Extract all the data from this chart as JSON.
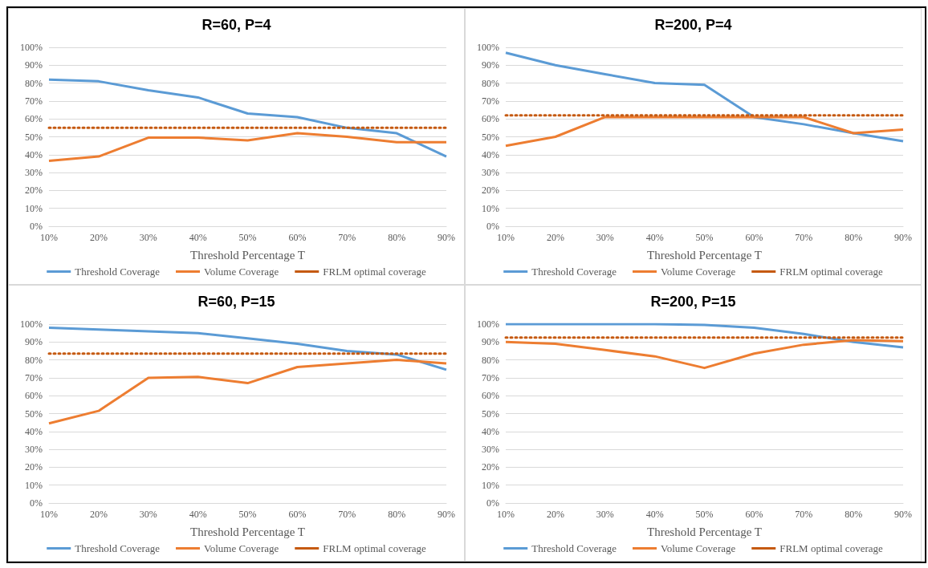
{
  "chart_data": [
    {
      "type": "line",
      "title": "R=60, P=4",
      "xlabel": "Threshold Percentage T",
      "categories": [
        "10%",
        "20%",
        "30%",
        "40%",
        "50%",
        "60%",
        "70%",
        "80%",
        "90%"
      ],
      "ylim": [
        0,
        100
      ],
      "yticks": [
        {
          "value": 0,
          "label": "0%"
        },
        {
          "value": 10,
          "label": "10%"
        },
        {
          "value": 20,
          "label": "20%"
        },
        {
          "value": 30,
          "label": "30%"
        },
        {
          "value": 40,
          "label": "40%"
        },
        {
          "value": 50,
          "label": "50%"
        },
        {
          "value": 60,
          "label": "60%"
        },
        {
          "value": 70,
          "label": "70%"
        },
        {
          "value": 80,
          "label": "80%"
        },
        {
          "value": 90,
          "label": "90%"
        },
        {
          "value": 100,
          "label": "100%"
        }
      ],
      "grid": "y",
      "legend": "bottom",
      "marker": "none",
      "series": [
        {
          "name": "Threshold Coverage",
          "color": "#5b9bd5",
          "line_style": "solid",
          "values": [
            82,
            81,
            76,
            72,
            63,
            61,
            55,
            52,
            39
          ]
        },
        {
          "name": "Volume Coverage",
          "color": "#ed7d31",
          "line_style": "solid",
          "values": [
            36.5,
            39,
            49.5,
            49.5,
            48,
            52,
            50,
            47,
            47
          ]
        },
        {
          "name": "FRLM optimal coverage",
          "color": "#c55a11",
          "line_style": "dotted",
          "values": [
            55,
            55,
            55,
            55,
            55,
            55,
            55,
            55,
            55
          ]
        }
      ]
    },
    {
      "type": "line",
      "title": "R=200, P=4",
      "xlabel": "Threshold Percentage T",
      "categories": [
        "10%",
        "20%",
        "30%",
        "40%",
        "50%",
        "60%",
        "70%",
        "80%",
        "90%"
      ],
      "ylim": [
        0,
        100
      ],
      "yticks": [
        {
          "value": 0,
          "label": "0%"
        },
        {
          "value": 10,
          "label": "10%"
        },
        {
          "value": 20,
          "label": "20%"
        },
        {
          "value": 30,
          "label": "30%"
        },
        {
          "value": 40,
          "label": "40%"
        },
        {
          "value": 50,
          "label": "50%"
        },
        {
          "value": 60,
          "label": "60%"
        },
        {
          "value": 70,
          "label": "70%"
        },
        {
          "value": 80,
          "label": "80%"
        },
        {
          "value": 90,
          "label": "90%"
        },
        {
          "value": 100,
          "label": "100%"
        }
      ],
      "grid": "y",
      "legend": "bottom",
      "marker": "none",
      "series": [
        {
          "name": "Threshold Coverage",
          "color": "#5b9bd5",
          "line_style": "solid",
          "values": [
            97,
            90,
            85,
            80,
            79,
            61,
            57,
            52,
            47.5
          ]
        },
        {
          "name": "Volume Coverage",
          "color": "#ed7d31",
          "line_style": "solid",
          "values": [
            45,
            50,
            61,
            61,
            61,
            61,
            61,
            52,
            54
          ]
        },
        {
          "name": "FRLM optimal coverage",
          "color": "#c55a11",
          "line_style": "dotted",
          "values": [
            62,
            62,
            62,
            62,
            62,
            62,
            62,
            62,
            62
          ]
        }
      ]
    },
    {
      "type": "line",
      "title": "R=60, P=15",
      "xlabel": "Threshold Percentage T",
      "categories": [
        "10%",
        "20%",
        "30%",
        "40%",
        "50%",
        "60%",
        "70%",
        "80%",
        "90%"
      ],
      "ylim": [
        0,
        100
      ],
      "yticks": [
        {
          "value": 0,
          "label": "0%"
        },
        {
          "value": 10,
          "label": "10%"
        },
        {
          "value": 20,
          "label": "20%"
        },
        {
          "value": 30,
          "label": "30%"
        },
        {
          "value": 40,
          "label": "40%"
        },
        {
          "value": 50,
          "label": "50%"
        },
        {
          "value": 60,
          "label": "60%"
        },
        {
          "value": 70,
          "label": "70%"
        },
        {
          "value": 80,
          "label": "80%"
        },
        {
          "value": 90,
          "label": "90%"
        },
        {
          "value": 100,
          "label": "100%"
        }
      ],
      "grid": "y",
      "legend": "bottom",
      "marker": "none",
      "series": [
        {
          "name": "Threshold Coverage",
          "color": "#5b9bd5",
          "line_style": "solid",
          "values": [
            98,
            97,
            96,
            95,
            92,
            89,
            85,
            83,
            74.5
          ]
        },
        {
          "name": "Volume Coverage",
          "color": "#ed7d31",
          "line_style": "solid",
          "values": [
            44.5,
            51.5,
            70,
            70.5,
            67,
            76,
            78,
            80,
            78
          ]
        },
        {
          "name": "FRLM optimal coverage",
          "color": "#c55a11",
          "line_style": "dotted",
          "values": [
            83.5,
            83.5,
            83.5,
            83.5,
            83.5,
            83.5,
            83.5,
            83.5,
            83.5
          ]
        }
      ]
    },
    {
      "type": "line",
      "title": "R=200, P=15",
      "xlabel": "Threshold Percentage T",
      "categories": [
        "10%",
        "20%",
        "30%",
        "40%",
        "50%",
        "60%",
        "70%",
        "80%",
        "90%"
      ],
      "ylim": [
        0,
        100
      ],
      "yticks": [
        {
          "value": 0,
          "label": "0%"
        },
        {
          "value": 10,
          "label": "10%"
        },
        {
          "value": 20,
          "label": "20%"
        },
        {
          "value": 30,
          "label": "30%"
        },
        {
          "value": 40,
          "label": "40%"
        },
        {
          "value": 50,
          "label": "50%"
        },
        {
          "value": 60,
          "label": "60%"
        },
        {
          "value": 70,
          "label": "70%"
        },
        {
          "value": 80,
          "label": "80%"
        },
        {
          "value": 90,
          "label": "90%"
        },
        {
          "value": 100,
          "label": "100%"
        }
      ],
      "grid": "y",
      "legend": "bottom",
      "marker": "none",
      "series": [
        {
          "name": "Threshold Coverage",
          "color": "#5b9bd5",
          "line_style": "solid",
          "values": [
            100,
            100,
            100,
            100,
            99.5,
            98,
            94.5,
            90,
            87
          ]
        },
        {
          "name": "Volume Coverage",
          "color": "#ed7d31",
          "line_style": "solid",
          "values": [
            90,
            89,
            85.5,
            82,
            75.5,
            83.5,
            88.5,
            91,
            90.5
          ]
        },
        {
          "name": "FRLM optimal coverage",
          "color": "#c55a11",
          "line_style": "dotted",
          "values": [
            92.5,
            92.5,
            92.5,
            92.5,
            92.5,
            92.5,
            92.5,
            92.5,
            92.5
          ]
        }
      ]
    }
  ]
}
